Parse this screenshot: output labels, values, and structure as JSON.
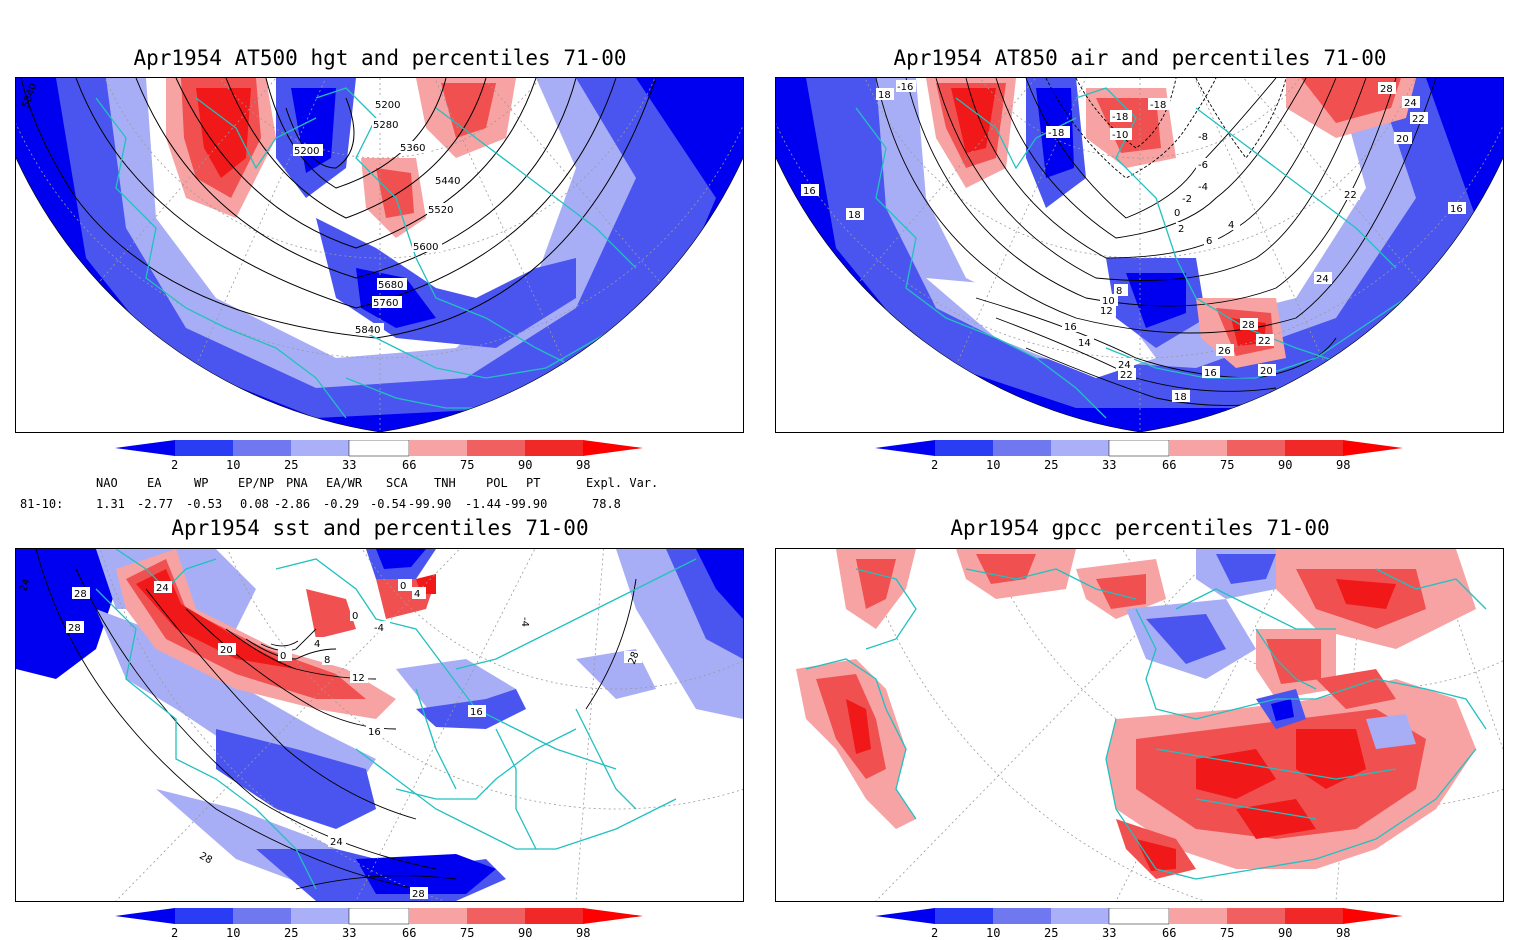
{
  "panels": [
    {
      "id": "p1",
      "title": "Apr1954 AT500 hgt and percentiles 71-00",
      "contour_labels": [
        "5840",
        "5200",
        "5280",
        "5200",
        "5360",
        "5440",
        "5520",
        "5600",
        "5680",
        "5760",
        "5840"
      ]
    },
    {
      "id": "p2",
      "title": "Apr1954 AT850 air and percentiles 71-00",
      "contour_labels": [
        "-16",
        "-18",
        "-18",
        "-10",
        "-18",
        "-8",
        "-6",
        "-4",
        "-2",
        "0",
        "2",
        "4",
        "6",
        "28",
        "24",
        "22",
        "20",
        "18",
        "16",
        "18",
        "16",
        "22",
        "8",
        "10",
        "12",
        "14",
        "16",
        "24",
        "28",
        "26",
        "22",
        "24",
        "22",
        "20",
        "18",
        "16"
      ]
    },
    {
      "id": "p3",
      "title": "Apr1954 sst and percentiles 71-00",
      "contour_labels": [
        "24",
        "28",
        "28",
        "24",
        "0",
        "4",
        "0",
        "-4",
        "-4",
        "20",
        "0",
        "4",
        "8",
        "12",
        "16",
        "16",
        "24",
        "28",
        "28",
        "28",
        "24"
      ]
    },
    {
      "id": "p4",
      "title": "Apr1954 gpcc percentiles 71-00",
      "contour_labels": []
    }
  ],
  "colorbar": {
    "labels": [
      "2",
      "10",
      "25",
      "33",
      "66",
      "75",
      "90",
      "98"
    ],
    "colors": {
      "below2": "#0000f0",
      "b2_10": "#2b3cf5",
      "b10_25": "#6f78ee",
      "b25_33": "#aab0f7",
      "b66_75": "#f7a3a3",
      "b75_90": "#f06060",
      "b90_98": "#f02828",
      "above98": "#ff0000"
    }
  },
  "teleconnections": {
    "header": [
      "NAO",
      "EA",
      "WP",
      "EP/NP",
      "PNA",
      "EA/WR",
      "SCA",
      "TNH",
      "POL",
      "PT",
      "Expl. Var."
    ],
    "row_label": "81-10:",
    "values": [
      "1.31",
      "-2.77",
      "-0.53",
      "0.08",
      "-2.86",
      "-0.29",
      "-0.54",
      "-99.90",
      "-1.44",
      "-99.90",
      "78.8"
    ]
  },
  "colors": {
    "coast": "#22c0c0",
    "grid": "#9a9a9a",
    "contour": "#000000",
    "blue_deep": "#0000f0",
    "blue_mid": "#4a55f0",
    "blue_light": "#a8aef5",
    "red_light": "#f7a3a3",
    "red_mid": "#f05050",
    "red_deep": "#f01818"
  }
}
